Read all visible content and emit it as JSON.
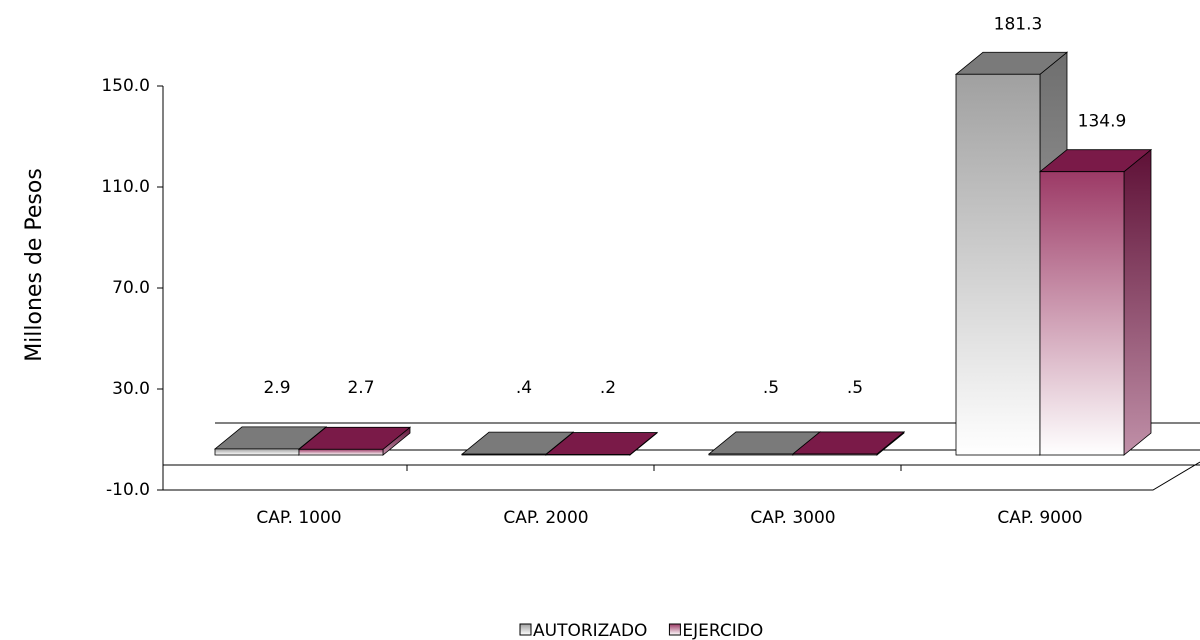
{
  "chart_data": {
    "type": "bar3d",
    "y_label": "Millones de Pesos",
    "categories": [
      "CAP. 1000",
      "CAP. 2000",
      "CAP. 3000",
      "CAP. 9000"
    ],
    "series": [
      {
        "name": "AUTORIZADO",
        "color": "#a6a6a6",
        "values": [
          2.9,
          0.4,
          0.5,
          181.3
        ],
        "value_labels": [
          "2.9",
          ".4",
          ".5",
          "181.3"
        ]
      },
      {
        "name": "EJERCIDO",
        "color": "#993366",
        "values": [
          2.7,
          0.2,
          0.5,
          134.9
        ],
        "value_labels": [
          "2.7",
          ".2",
          ".5",
          "134.9"
        ]
      }
    ],
    "ylim": [
      -10,
      150
    ],
    "yticks": [
      {
        "value": -10,
        "label": "-10.0"
      },
      {
        "value": 30,
        "label": "30.0"
      },
      {
        "value": 70,
        "label": "70.0"
      },
      {
        "value": 110,
        "label": "110.0"
      },
      {
        "value": 150,
        "label": "150.0"
      }
    ],
    "legend": "bottom"
  }
}
